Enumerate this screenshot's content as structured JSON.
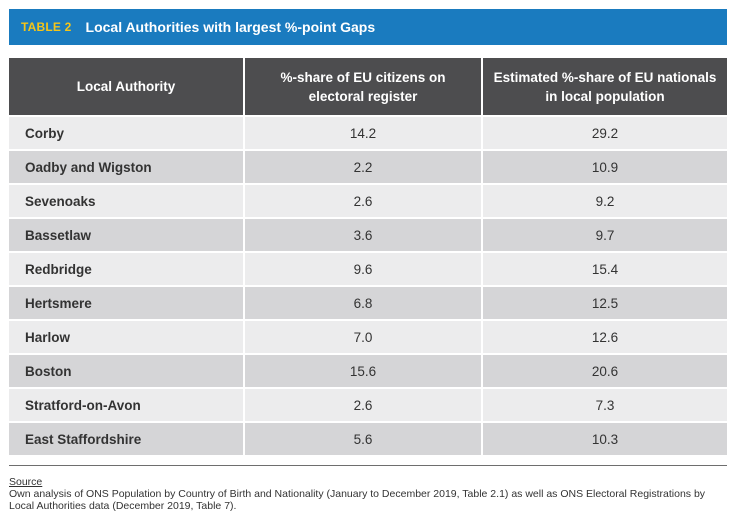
{
  "banner": {
    "tag": "TABLE 2",
    "title": "Local Authorities with largest %-point Gaps"
  },
  "table": {
    "headers": [
      "Local Authority",
      "%-share of EU citizens on electoral register",
      "Estimated %-share of EU nationals in local population"
    ],
    "rows": [
      {
        "authority": "Corby",
        "register_share": "14.2",
        "population_share": "29.2"
      },
      {
        "authority": "Oadby and Wigston",
        "register_share": "2.2",
        "population_share": "10.9"
      },
      {
        "authority": "Sevenoaks",
        "register_share": "2.6",
        "population_share": "9.2"
      },
      {
        "authority": "Bassetlaw",
        "register_share": "3.6",
        "population_share": "9.7"
      },
      {
        "authority": "Redbridge",
        "register_share": "9.6",
        "population_share": "15.4"
      },
      {
        "authority": "Hertsmere",
        "register_share": "6.8",
        "population_share": "12.5"
      },
      {
        "authority": "Harlow",
        "register_share": "7.0",
        "population_share": "12.6"
      },
      {
        "authority": "Boston",
        "register_share": "15.6",
        "population_share": "20.6"
      },
      {
        "authority": "Stratford-on-Avon",
        "register_share": "2.6",
        "population_share": "7.3"
      },
      {
        "authority": "East Staffordshire",
        "register_share": "5.6",
        "population_share": "10.3"
      }
    ]
  },
  "source": {
    "label": "Source",
    "text": "Own analysis of ONS Population by Country of Birth and Nationality (January to December 2019, Table 2.1) as well as ONS Electoral Registrations by Local Authorities data (December 2019, Table 7)."
  },
  "colors": {
    "banner": "#1a7bbf",
    "tag": "#f5c518",
    "header": "#4d4d4f",
    "row_light": "#ececed",
    "row_dark": "#d5d5d7"
  }
}
